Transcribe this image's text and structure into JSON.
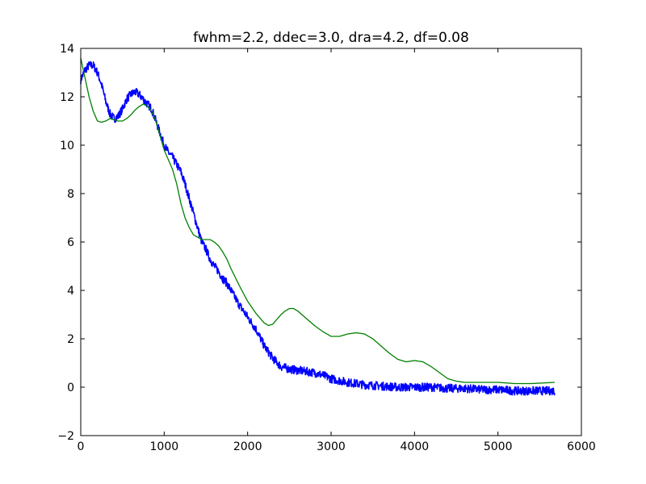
{
  "chart_data": {
    "type": "line",
    "title": "fwhm=2.2, ddec=3.0, dra=4.2, df=0.08",
    "xlabel": "",
    "ylabel": "",
    "xlim": [
      0,
      6000
    ],
    "ylim": [
      -2,
      14
    ],
    "xticks": [
      "0",
      "1000",
      "2000",
      "3000",
      "4000",
      "5000",
      "6000"
    ],
    "yticks": [
      "−2",
      "0",
      "2",
      "4",
      "6",
      "8",
      "10",
      "12",
      "14"
    ],
    "xtick_values": [
      0,
      1000,
      2000,
      3000,
      4000,
      5000,
      6000
    ],
    "ytick_values": [
      -2,
      0,
      2,
      4,
      6,
      8,
      10,
      12,
      14
    ],
    "grid": false,
    "legend": "none",
    "series": [
      {
        "color": "#0000ff",
        "noisy": true,
        "x": [
          0,
          50,
          100,
          150,
          200,
          250,
          300,
          350,
          400,
          450,
          500,
          550,
          600,
          650,
          700,
          750,
          800,
          850,
          900,
          950,
          1000,
          1050,
          1100,
          1150,
          1200,
          1250,
          1300,
          1350,
          1400,
          1450,
          1500,
          1550,
          1600,
          1650,
          1700,
          1750,
          1800,
          1900,
          2000,
          2100,
          2200,
          2300,
          2400,
          2500,
          2600,
          2700,
          2800,
          2900,
          3000,
          3200,
          3400,
          3600,
          3800,
          4000,
          4200,
          4400,
          4600,
          4800,
          5000,
          5200,
          5400,
          5680
        ],
        "y": [
          12.7,
          13.1,
          13.3,
          13.3,
          13.0,
          12.5,
          11.8,
          11.3,
          11.1,
          11.2,
          11.5,
          11.9,
          12.1,
          12.2,
          12.1,
          11.9,
          11.7,
          11.5,
          11.0,
          10.5,
          10.0,
          9.7,
          9.5,
          9.2,
          8.9,
          8.4,
          7.8,
          7.2,
          6.6,
          6.0,
          5.7,
          5.3,
          5.0,
          4.8,
          4.5,
          4.3,
          4.0,
          3.4,
          2.9,
          2.4,
          1.7,
          1.2,
          0.85,
          0.75,
          0.7,
          0.65,
          0.6,
          0.5,
          0.35,
          0.2,
          0.1,
          0.05,
          0.0,
          0.0,
          0.0,
          -0.05,
          -0.05,
          -0.1,
          -0.1,
          -0.15,
          -0.15,
          -0.15
        ]
      },
      {
        "color": "#008000",
        "noisy": false,
        "x": [
          0,
          50,
          100,
          150,
          200,
          250,
          300,
          350,
          400,
          450,
          500,
          550,
          600,
          650,
          700,
          750,
          800,
          850,
          900,
          950,
          1000,
          1050,
          1100,
          1150,
          1200,
          1250,
          1300,
          1350,
          1400,
          1450,
          1500,
          1550,
          1600,
          1650,
          1700,
          1750,
          1800,
          1900,
          2000,
          2100,
          2200,
          2250,
          2300,
          2350,
          2400,
          2450,
          2500,
          2550,
          2600,
          2700,
          2800,
          2900,
          3000,
          3100,
          3200,
          3300,
          3400,
          3500,
          3600,
          3700,
          3800,
          3900,
          4000,
          4100,
          4200,
          4300,
          4400,
          4500,
          4600,
          4800,
          5000,
          5200,
          5400,
          5680
        ],
        "y": [
          13.6,
          12.8,
          12.0,
          11.4,
          11.0,
          10.95,
          11.0,
          11.1,
          11.05,
          11.0,
          11.0,
          11.1,
          11.25,
          11.45,
          11.6,
          11.7,
          11.6,
          11.4,
          11.0,
          10.4,
          9.8,
          9.4,
          9.0,
          8.4,
          7.6,
          7.0,
          6.6,
          6.3,
          6.2,
          6.1,
          6.1,
          6.1,
          6.0,
          5.85,
          5.6,
          5.3,
          4.9,
          4.2,
          3.55,
          3.05,
          2.65,
          2.55,
          2.6,
          2.8,
          3.0,
          3.15,
          3.25,
          3.25,
          3.15,
          2.85,
          2.55,
          2.3,
          2.1,
          2.1,
          2.2,
          2.25,
          2.2,
          2.0,
          1.7,
          1.4,
          1.15,
          1.05,
          1.1,
          1.05,
          0.85,
          0.6,
          0.35,
          0.25,
          0.2,
          0.2,
          0.2,
          0.15,
          0.15,
          0.2
        ]
      }
    ]
  }
}
